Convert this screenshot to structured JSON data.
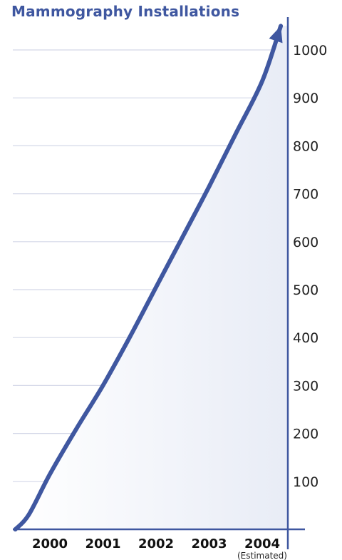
{
  "chart_data": {
    "type": "area",
    "title": "Mammography Installations",
    "xlabel": "",
    "ylabel": "",
    "categories": [
      "2000",
      "2001",
      "2002",
      "2003",
      "2004"
    ],
    "x_annotations": {
      "2004": "(Estimated)"
    },
    "yticks": [
      100,
      200,
      300,
      400,
      500,
      600,
      700,
      800,
      900,
      1000
    ],
    "ylim": [
      0,
      1000
    ],
    "grid": true,
    "y_axis_position": "right",
    "series": [
      {
        "x": [
          1999.35,
          1999.6,
          2000,
          2000.5,
          2001,
          2001.5,
          2002,
          2002.5,
          2003,
          2003.5,
          2004,
          2004.35
        ],
        "y": [
          0,
          30,
          115,
          210,
          300,
          400,
          505,
          610,
          715,
          825,
          935,
          1050
        ]
      }
    ],
    "colors": {
      "line": "#3f57a0",
      "area": "#eef1f9",
      "grid": "#d4d8e8",
      "axis": "#3f57a0"
    }
  }
}
